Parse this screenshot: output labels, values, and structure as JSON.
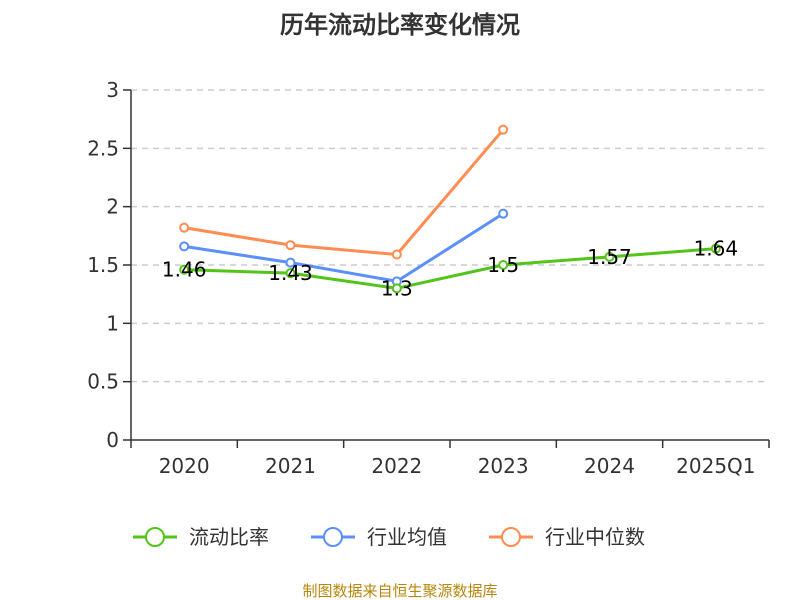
{
  "chart_data": {
    "type": "line",
    "title": "历年流动比率变化情况",
    "categories": [
      "2020",
      "2021",
      "2022",
      "2023",
      "2024",
      "2025Q1"
    ],
    "ylim": [
      0,
      3
    ],
    "yticks": [
      "0",
      "0.5",
      "1",
      "1.5",
      "2",
      "2.5",
      "3"
    ],
    "grid": true,
    "legend_position": "bottom",
    "series": [
      {
        "name": "流动比率",
        "color": "#52c41a",
        "values": [
          1.46,
          1.43,
          1.3,
          1.5,
          1.57,
          1.64
        ],
        "labels": [
          "1.46",
          "1.43",
          "1.3",
          "1.5",
          "1.57",
          "1.64"
        ]
      },
      {
        "name": "行业均值",
        "color": "#5b8ff9",
        "values": [
          1.66,
          1.52,
          1.36,
          1.94,
          null,
          null
        ]
      },
      {
        "name": "行业中位数",
        "color": "#ff8c50",
        "values": [
          1.82,
          1.67,
          1.59,
          2.66,
          null,
          null
        ]
      }
    ]
  },
  "source_text": "制图数据来自恒生聚源数据库"
}
